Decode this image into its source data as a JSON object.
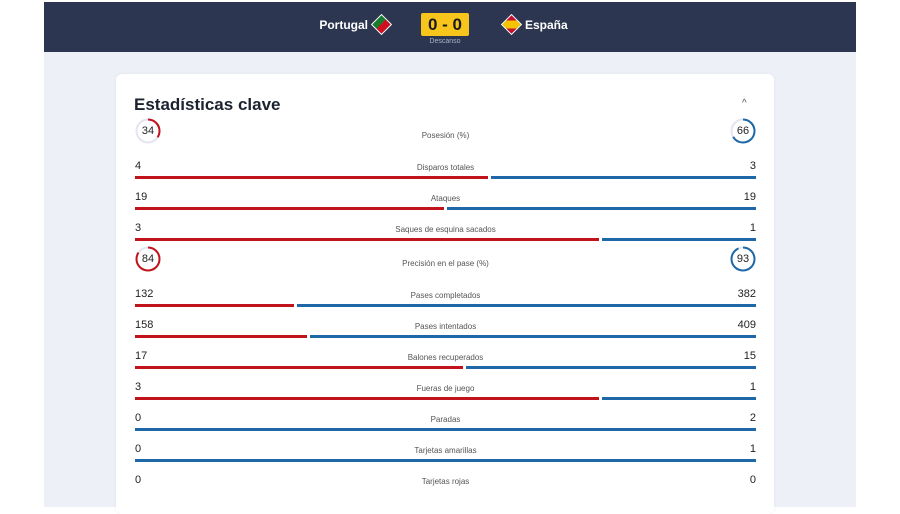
{
  "header": {
    "home_team": "Portugal",
    "away_team": "España",
    "home_flag": "portugal-flag-icon",
    "away_flag": "spain-flag-icon",
    "score": "0 - 0",
    "status": "Descanso"
  },
  "card": {
    "title": "Estadísticas clave",
    "collapse_icon": "chevron-up-icon",
    "collapse_glyph": "^"
  },
  "colors": {
    "home": "#c0131b",
    "away": "#1f68a8",
    "header_bg": "#2c3650",
    "score_bg": "#f7c51b"
  },
  "stats": [
    {
      "label": "Posesión (%)",
      "home": "34",
      "away": "66",
      "type": "ring"
    },
    {
      "label": "Disparos totales",
      "home": "4",
      "away": "3",
      "type": "bar"
    },
    {
      "label": "Ataques",
      "home": "19",
      "away": "19",
      "type": "bar"
    },
    {
      "label": "Saques de esquina sacados",
      "home": "3",
      "away": "1",
      "type": "bar"
    },
    {
      "label": "Precisión en el pase (%)",
      "home": "84",
      "away": "93",
      "type": "ring"
    },
    {
      "label": "Pases completados",
      "home": "132",
      "away": "382",
      "type": "bar"
    },
    {
      "label": "Pases intentados",
      "home": "158",
      "away": "409",
      "type": "bar"
    },
    {
      "label": "Balones recuperados",
      "home": "17",
      "away": "15",
      "type": "bar"
    },
    {
      "label": "Fueras de juego",
      "home": "3",
      "away": "1",
      "type": "bar"
    },
    {
      "label": "Paradas",
      "home": "0",
      "away": "2",
      "type": "bar"
    },
    {
      "label": "Tarjetas amarillas",
      "home": "0",
      "away": "1",
      "type": "bar"
    },
    {
      "label": "Tarjetas rojas",
      "home": "0",
      "away": "0",
      "type": "bar"
    }
  ]
}
